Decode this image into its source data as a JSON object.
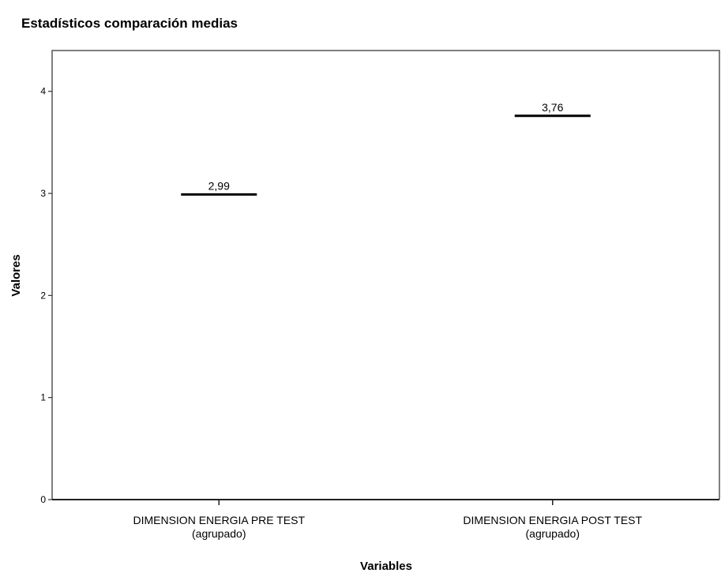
{
  "chart_data": {
    "type": "scatter",
    "title": "Estadísticos comparación medias",
    "xlabel": "Variables",
    "ylabel": "Valores",
    "ylim": [
      0,
      4.4
    ],
    "y_ticks": [
      0,
      1,
      2,
      3,
      4
    ],
    "categories": [
      [
        "DIMENSION ENERGIA PRE TEST",
        "(agrupado)"
      ],
      [
        "DIMENSION ENERGIA POST TEST",
        "(agrupado)"
      ]
    ],
    "values": [
      2.99,
      3.76
    ],
    "value_labels": [
      "2,99",
      "3,76"
    ],
    "marker": "horizontal-line",
    "grid": false,
    "legend": false
  }
}
